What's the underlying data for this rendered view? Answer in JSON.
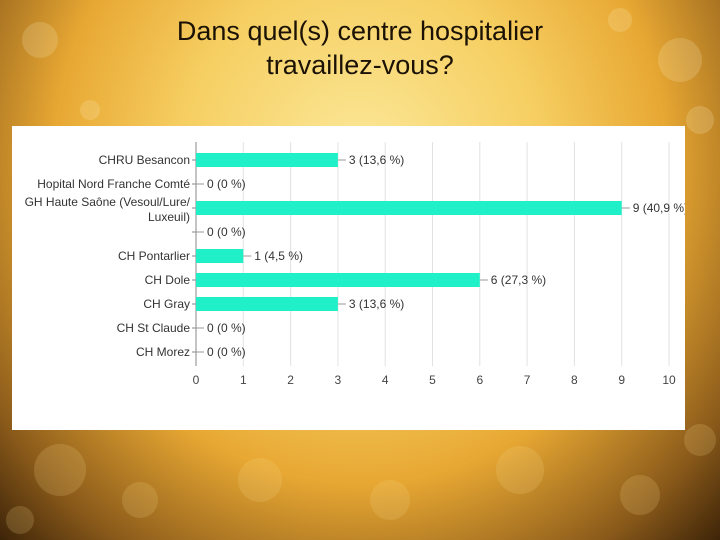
{
  "slide": {
    "title": "Dans quel(s) centre hospitalier\ntravaillez-vous?"
  },
  "colors": {
    "bar": "#20f0c8",
    "grid": "#e2e2e2",
    "axis": "#888888"
  },
  "chart_data": {
    "type": "bar",
    "orientation": "horizontal",
    "categories": [
      "CHRU Besancon",
      "Hopital Nord Franche Comté",
      "GH Haute Saône (Vesoul/Lure/ Luxeuil)",
      "",
      "CH Pontarlier",
      "CH Dole",
      "CH Gray",
      "CH St Claude",
      "CH Morez"
    ],
    "values": [
      3,
      0,
      9,
      0,
      1,
      6,
      3,
      0,
      0
    ],
    "data_labels": [
      "3 (13,6 %)",
      "0 (0 %)",
      "9 (40,9 %)",
      "0 (0 %)",
      "1 (4,5 %)",
      "6 (27,3 %)",
      "3 (13,6 %)",
      "0 (0 %)",
      "0 (0 %)"
    ],
    "xlim": [
      0,
      10
    ],
    "xticks": [
      "0",
      "1",
      "2",
      "3",
      "4",
      "5",
      "6",
      "7",
      "8",
      "9",
      "10"
    ],
    "grid": true
  }
}
